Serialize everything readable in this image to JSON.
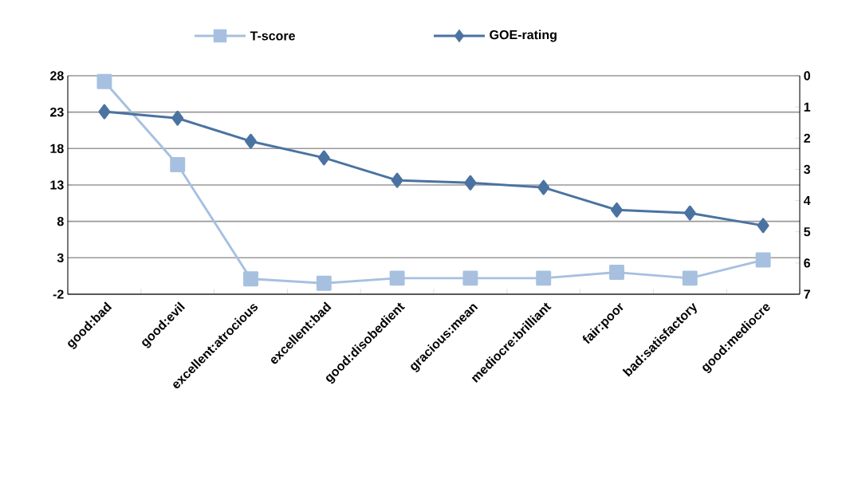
{
  "chart_data": {
    "type": "line",
    "categories": [
      "good:bad",
      "good:evil",
      "excellent:atrocious",
      "excellent:bad",
      "good:disobedient",
      "gracious:mean",
      "mediocre:brilliant",
      "fair:poor",
      "bad:satisfactory",
      "good:mediocre"
    ],
    "series": [
      {
        "name": "T-score",
        "color": "#a7c0e0",
        "marker": "square",
        "values": [
          27.2,
          15.8,
          0.1,
          -0.5,
          0.2,
          0.2,
          0.2,
          1.0,
          0.2,
          2.7
        ]
      },
      {
        "name": "GOE-rating",
        "color": "#4a73a1",
        "marker": "diamond",
        "axis": "y2",
        "values": [
          1.15,
          1.36,
          2.1,
          2.63,
          3.35,
          3.43,
          3.58,
          4.3,
          4.4,
          4.8
        ]
      }
    ],
    "ylim": [
      -2,
      28
    ],
    "yticks": [
      -2,
      3,
      8,
      13,
      18,
      23,
      28
    ],
    "y2lim": [
      7,
      0
    ],
    "y2ticks": [
      0,
      1,
      2,
      3,
      4,
      5,
      6,
      7
    ],
    "grid": "y",
    "legend": "top",
    "line_style": "solid"
  }
}
